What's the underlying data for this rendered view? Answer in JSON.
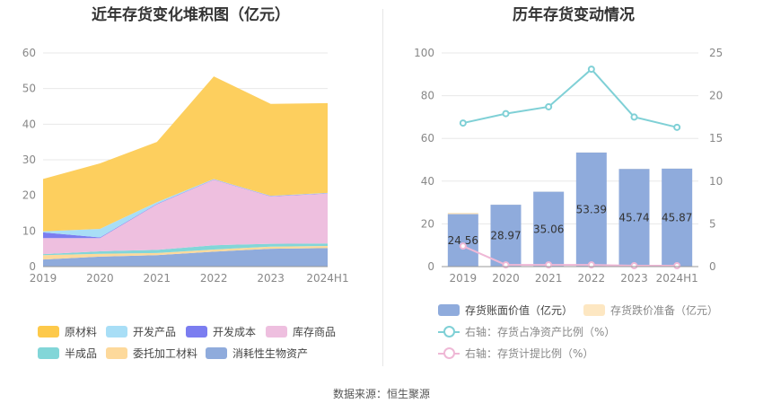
{
  "left_chart": {
    "title": "近年存货变化堆积图（亿元）",
    "chart_data": {
      "type": "area",
      "stacked": true,
      "x": [
        "2019",
        "2020",
        "2021",
        "2022",
        "2023",
        "2024H1"
      ],
      "ylim": [
        0,
        60
      ],
      "yticks": [
        0,
        10,
        20,
        30,
        40,
        50,
        60
      ],
      "grid": true,
      "legend_position": "bottom",
      "series": [
        {
          "name": "消耗性生物资产",
          "color": "#8fabdc",
          "values": [
            2.0,
            2.8,
            3.2,
            4.2,
            5.0,
            5.2
          ]
        },
        {
          "name": "委托加工材料",
          "color": "#fdd99b",
          "values": [
            1.2,
            0.8,
            0.6,
            0.6,
            0.6,
            0.6
          ]
        },
        {
          "name": "半成品",
          "color": "#82d6d8",
          "values": [
            0.3,
            0.7,
            0.9,
            1.2,
            0.8,
            0.7
          ]
        },
        {
          "name": "库存商品",
          "color": "#eebfdf",
          "values": [
            4.5,
            3.7,
            12.8,
            18.4,
            13.3,
            14.0
          ]
        },
        {
          "name": "开发成本",
          "color": "#7b7df0",
          "values": [
            1.6,
            0.2,
            0.1,
            0.1,
            0.1,
            0.1
          ]
        },
        {
          "name": "开发产品",
          "color": "#a8def6",
          "values": [
            0.3,
            2.4,
            0.5,
            0.1,
            0.1,
            0.1
          ]
        },
        {
          "name": "原材料",
          "color": "#fdcf5e",
          "values": [
            14.7,
            18.4,
            16.9,
            28.8,
            25.8,
            25.2
          ]
        }
      ]
    },
    "legend": [
      {
        "label": "原材料",
        "color": "#fdc94a"
      },
      {
        "label": "开发产品",
        "color": "#a8def6"
      },
      {
        "label": "开发成本",
        "color": "#7b7df0"
      },
      {
        "label": "库存商品",
        "color": "#eebfdf"
      },
      {
        "label": "半成品",
        "color": "#82d6d8"
      },
      {
        "label": "委托加工材料",
        "color": "#fdd99b"
      },
      {
        "label": "消耗性生物资产",
        "color": "#8fabdc"
      }
    ]
  },
  "right_chart": {
    "title": "历年存货变动情况",
    "chart_data": {
      "type": "bar",
      "categories": [
        "2019",
        "2020",
        "2021",
        "2022",
        "2023",
        "2024H1"
      ],
      "ylim_left": [
        0,
        100
      ],
      "yticks_left": [
        0,
        20,
        40,
        60,
        80,
        100
      ],
      "ylim_right": [
        0,
        25
      ],
      "yticks_right": [
        0,
        5,
        10,
        15,
        20,
        25
      ],
      "grid": true,
      "legend_position": "bottom",
      "bar_series": [
        {
          "name": "存货账面价值（亿元）",
          "color": "#8fabdc",
          "values": [
            24.56,
            28.97,
            35.06,
            53.39,
            45.74,
            45.87
          ],
          "labels": [
            "24.56",
            "28.97",
            "35.06",
            "53.39",
            "45.74",
            "45.87"
          ]
        },
        {
          "name": "存货跌价准备（亿元）",
          "color": "#fde7c2",
          "values": [
            0.6,
            0.05,
            0.05,
            0.05,
            0.05,
            0.05
          ]
        }
      ],
      "line_series": [
        {
          "name": "右轴：存货占净资产比例（%）",
          "color": "#7fd0d6",
          "values": [
            16.8,
            17.9,
            18.7,
            23.1,
            17.5,
            16.3
          ]
        },
        {
          "name": "右轴：存货计提比例（%）",
          "color": "#efb8d6",
          "values": [
            2.4,
            0.2,
            0.2,
            0.2,
            0.1,
            0.1
          ]
        }
      ]
    },
    "legend": [
      {
        "label": "存货账面价值（亿元）",
        "color": "#8fabdc",
        "kind": "box"
      },
      {
        "label": "存货跌价准备（亿元）",
        "color": "#fde7c2",
        "kind": "box"
      },
      {
        "label": "右轴：存货占净资产比例（%）",
        "color": "#7fd0d6",
        "kind": "line"
      },
      {
        "label": "右轴：存货计提比例（%）",
        "color": "#efb8d6",
        "kind": "line"
      }
    ]
  },
  "footer": {
    "source": "数据来源：恒生聚源"
  }
}
